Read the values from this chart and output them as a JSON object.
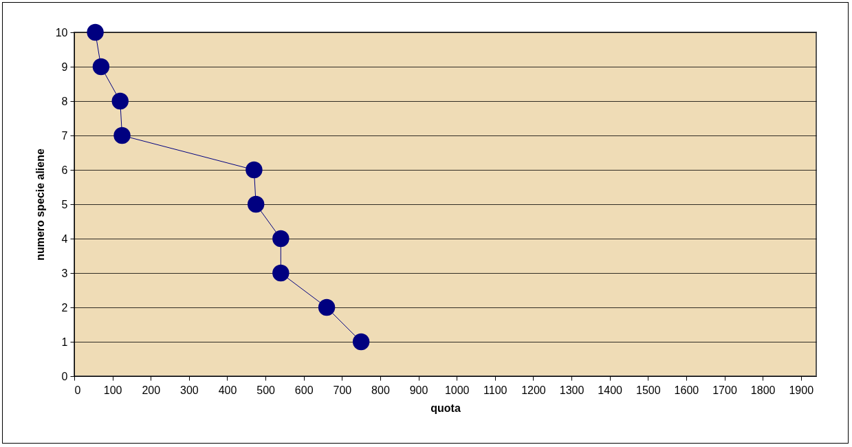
{
  "chart_data": {
    "type": "line",
    "xlabel": "quota",
    "ylabel": "numero specie aliene",
    "series": [
      {
        "color": "#000080",
        "x": [
          750,
          660,
          540,
          540,
          475,
          470,
          125,
          120,
          70,
          55
        ],
        "values": [
          1,
          2,
          3,
          4,
          5,
          6,
          7,
          8,
          9,
          10
        ]
      }
    ],
    "xlim": [
      0,
      1940
    ],
    "xticks": [
      0,
      100,
      200,
      300,
      400,
      500,
      600,
      700,
      800,
      900,
      1000,
      1100,
      1200,
      1300,
      1400,
      1500,
      1600,
      1700,
      1800,
      1900
    ],
    "ylim": [
      0,
      10
    ],
    "yticks": [
      0,
      1,
      2,
      3,
      4,
      5,
      6,
      7,
      8,
      9,
      10
    ],
    "grid": "y",
    "marker": "circle",
    "line_style": "solid",
    "legend": false
  }
}
